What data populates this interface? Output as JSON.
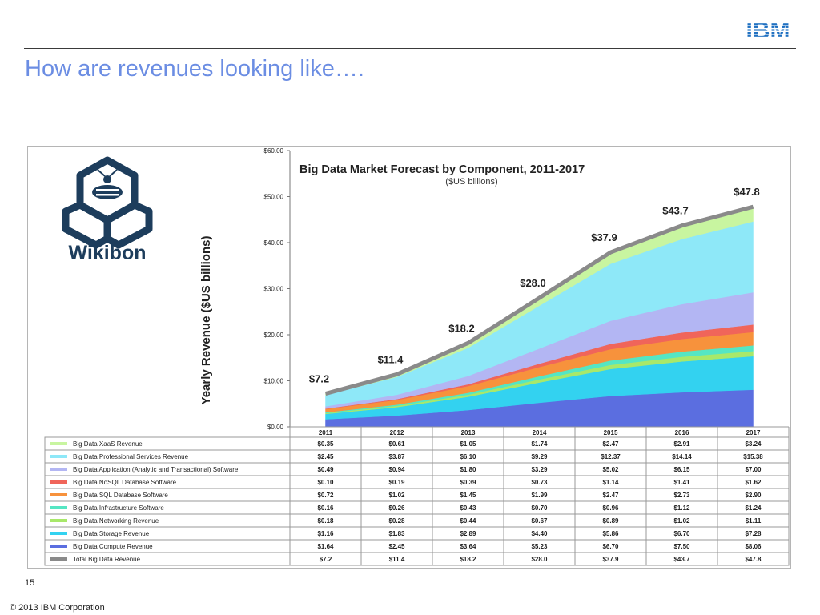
{
  "slide": {
    "title": "How are revenues looking like….",
    "page_number": "15",
    "copyright": "© 2013 IBM Corporation",
    "ibm_logo_text": "IBM",
    "wikibon_logo_text": "Wikibon"
  },
  "colors": {
    "title": "#6b8de3",
    "ibm_blue": "#1f70c1",
    "wikibon_navy": "#1d3d5c",
    "total_line": "#8a8a8a"
  },
  "chart_data": {
    "type": "area",
    "title": "Big Data Market Forecast by Component, 2011-2017",
    "subtitle": "($US billions)",
    "ylabel": "Yearly Revenue ($US billions)",
    "xlabel": "",
    "ylim": [
      0,
      60
    ],
    "y_ticks": [
      "$0.00",
      "$10.00",
      "$20.00",
      "$30.00",
      "$40.00",
      "$50.00",
      "$60.00"
    ],
    "x": [
      "2011",
      "2012",
      "2013",
      "2014",
      "2015",
      "2016",
      "2017"
    ],
    "grid": false,
    "legend": "table-below",
    "series": [
      {
        "name": "Big Data XaaS Revenue",
        "color": "#c8f5a0",
        "values": [
          0.35,
          0.61,
          1.05,
          1.74,
          2.47,
          2.91,
          3.24
        ],
        "display": [
          "$0.35",
          "$0.61",
          "$1.05",
          "$1.74",
          "$2.47",
          "$2.91",
          "$3.24"
        ]
      },
      {
        "name": "Big Data Professional Services Revenue",
        "color": "#8ee8f8",
        "values": [
          2.45,
          3.87,
          6.1,
          9.29,
          12.37,
          14.14,
          15.38
        ],
        "display": [
          "$2.45",
          "$3.87",
          "$6.10",
          "$9.29",
          "$12.37",
          "$14.14",
          "$15.38"
        ]
      },
      {
        "name": "Big Data Application (Analytic and Transactional) Software",
        "color": "#b3b6f3",
        "values": [
          0.49,
          0.94,
          1.8,
          3.29,
          5.02,
          6.15,
          7.0
        ],
        "display": [
          "$0.49",
          "$0.94",
          "$1.80",
          "$3.29",
          "$5.02",
          "$6.15",
          "$7.00"
        ]
      },
      {
        "name": "Big Data NoSQL Database Software",
        "color": "#f0655a",
        "values": [
          0.1,
          0.19,
          0.39,
          0.73,
          1.14,
          1.41,
          1.62
        ],
        "display": [
          "$0.10",
          "$0.19",
          "$0.39",
          "$0.73",
          "$1.14",
          "$1.41",
          "$1.62"
        ]
      },
      {
        "name": "Big Data SQL Database Software",
        "color": "#f7923c",
        "values": [
          0.72,
          1.02,
          1.45,
          1.99,
          2.47,
          2.73,
          2.9
        ],
        "display": [
          "$0.72",
          "$1.02",
          "$1.45",
          "$1.99",
          "$2.47",
          "$2.73",
          "$2.90"
        ]
      },
      {
        "name": "Big Data Infrastructure Software",
        "color": "#55e6c3",
        "values": [
          0.16,
          0.26,
          0.43,
          0.7,
          0.96,
          1.12,
          1.24
        ],
        "display": [
          "$0.16",
          "$0.26",
          "$0.43",
          "$0.70",
          "$0.96",
          "$1.12",
          "$1.24"
        ]
      },
      {
        "name": "Big Data Networking Revenue",
        "color": "#a8e86a",
        "values": [
          0.18,
          0.28,
          0.44,
          0.67,
          0.89,
          1.02,
          1.11
        ],
        "display": [
          "$0.18",
          "$0.28",
          "$0.44",
          "$0.67",
          "$0.89",
          "$1.02",
          "$1.11"
        ]
      },
      {
        "name": "Big Data Storage Revenue",
        "color": "#33d2f0",
        "values": [
          1.16,
          1.83,
          2.89,
          4.4,
          5.86,
          6.7,
          7.28
        ],
        "display": [
          "$1.16",
          "$1.83",
          "$2.89",
          "$4.40",
          "$5.86",
          "$6.70",
          "$7.28"
        ]
      },
      {
        "name": "Big Data Compute Revenue",
        "color": "#5b6ee0",
        "values": [
          1.64,
          2.45,
          3.64,
          5.23,
          6.7,
          7.5,
          8.06
        ],
        "display": [
          "$1.64",
          "$2.45",
          "$3.64",
          "$5.23",
          "$6.70",
          "$7.50",
          "$8.06"
        ]
      }
    ],
    "total": {
      "name": "Total Big Data Revenue",
      "color": "#8a8a8a",
      "values": [
        7.2,
        11.4,
        18.2,
        28.0,
        37.9,
        43.7,
        47.8
      ],
      "display": [
        "$7.2",
        "$11.4",
        "$18.2",
        "$28.0",
        "$37.9",
        "$43.7",
        "$47.8"
      ]
    }
  }
}
